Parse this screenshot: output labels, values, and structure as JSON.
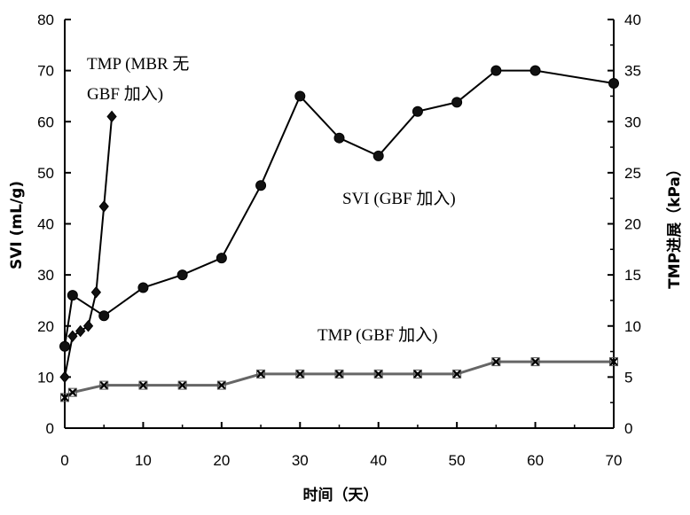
{
  "chart_data": {
    "type": "line",
    "xlabel": "时间（天）",
    "ylabel_left": "SVI (mL/g)",
    "ylabel_right": "TMP进展（kPa）",
    "x_ticks": [
      "0",
      "10",
      "20",
      "30",
      "40",
      "50",
      "60",
      "70"
    ],
    "y_left_ticks": [
      "0",
      "10",
      "20",
      "30",
      "40",
      "50",
      "60",
      "70",
      "80"
    ],
    "y_right_ticks": [
      "0",
      "5",
      "10",
      "15",
      "20",
      "25",
      "30",
      "35",
      "40"
    ],
    "xlim": [
      0,
      70
    ],
    "ylim_left": [
      0,
      80
    ],
    "ylim_right": [
      0,
      40
    ],
    "grid": false,
    "series": [
      {
        "name": "SVI (GBF 加入)",
        "axis": "left",
        "marker": "circle",
        "x": [
          0,
          1,
          5,
          10,
          15,
          20,
          25,
          30,
          35,
          40,
          45,
          50,
          55,
          60,
          70
        ],
        "y": [
          16,
          26,
          22,
          27.5,
          30,
          33.3,
          47.5,
          65,
          56.8,
          53.3,
          62,
          63.8,
          70,
          70,
          67.5
        ]
      },
      {
        "name": "TMP (MBR 无 GBF 加入)",
        "axis": "right",
        "marker": "diamond",
        "x": [
          0,
          1,
          2,
          3,
          4,
          5,
          6
        ],
        "y": [
          5,
          9,
          9.5,
          10,
          13.3,
          21.7,
          30.5
        ]
      },
      {
        "name": "TMP (GBF 加入)",
        "axis": "right",
        "marker": "x",
        "x": [
          0,
          1,
          5,
          10,
          15,
          20,
          25,
          30,
          35,
          40,
          45,
          50,
          55,
          60,
          70
        ],
        "y": [
          3,
          3.5,
          4.2,
          4.2,
          4.2,
          4.2,
          5.3,
          5.3,
          5.3,
          5.3,
          5.3,
          5.3,
          6.5,
          6.5,
          6.5
        ]
      }
    ],
    "annotations": {
      "tmp_mbr_line1": "TMP (MBR 无",
      "tmp_mbr_line2": "GBF 加入)",
      "svi_gbf": "SVI (GBF 加入)",
      "tmp_gbf": "TMP (GBF 加入)"
    }
  }
}
